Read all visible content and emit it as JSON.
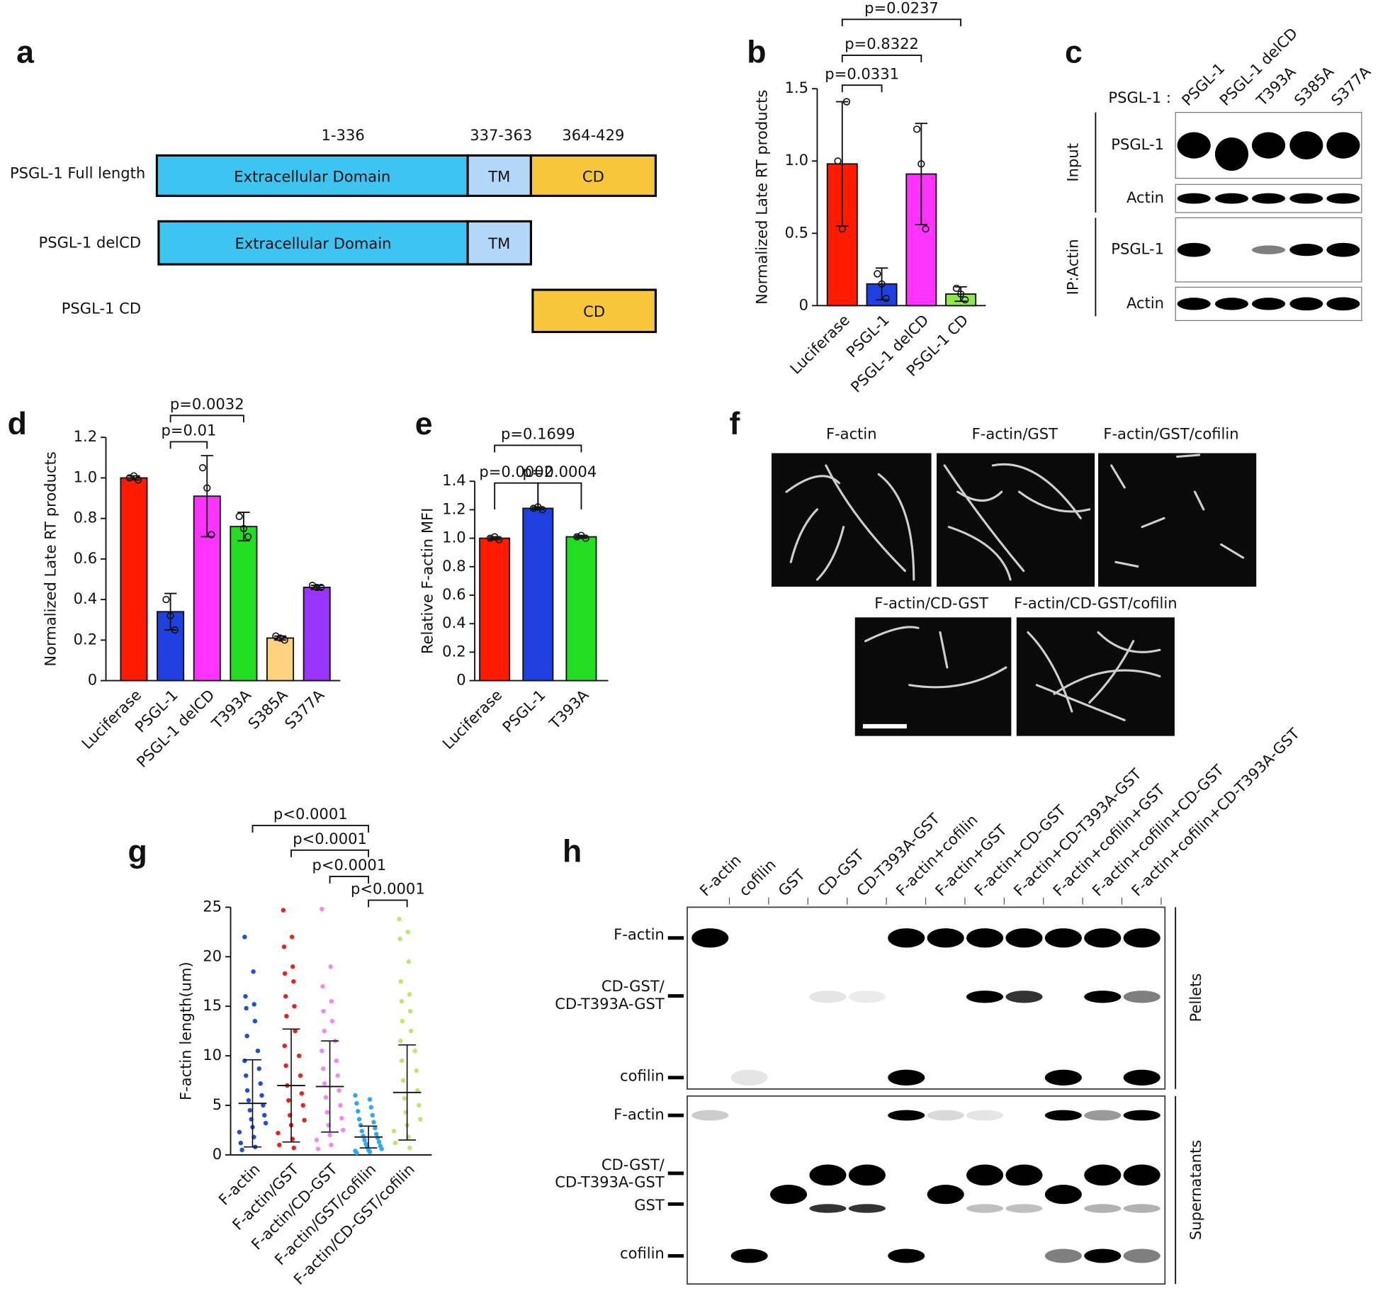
{
  "panel_labels": [
    "a",
    "b",
    "c",
    "d",
    "e",
    "f",
    "g",
    "h"
  ],
  "diagram": {
    "ranges": [
      "1-336",
      "337-363",
      "364-429"
    ],
    "rows": [
      {
        "label": "PSGL-1 Full length",
        "domains": [
          "Extracellular Domain",
          "TM",
          "CD"
        ]
      },
      {
        "label": "PSGL-1 delCD",
        "domains": [
          "Extracellular Domain",
          "TM"
        ]
      },
      {
        "label": "PSGL-1 CD",
        "domains": [
          "CD"
        ]
      }
    ]
  },
  "chart_data": [
    {
      "type": "bar",
      "ylabel": "Normalized Late RT products",
      "categories": [
        "Luciferase",
        "PSGL-1",
        "PSGL-1 delCD",
        "PSGL-1 CD"
      ],
      "values": [
        0.98,
        0.15,
        0.91,
        0.08
      ],
      "errors": [
        0.43,
        0.11,
        0.35,
        0.05
      ],
      "points": [
        [
          1.0,
          0.53,
          1.41
        ],
        [
          0.22,
          0.15,
          0.05
        ],
        [
          1.22,
          0.98,
          0.53
        ],
        [
          0.12,
          0.08,
          0.04
        ]
      ],
      "colors": [
        "#ff1a00",
        "#1f3fe0",
        "#ff33ff",
        "#8ee84a"
      ],
      "ylim": [
        0,
        1.5
      ],
      "yticks": [
        0,
        0.5,
        {
          "value": 1,
          "label": "1.0"
        },
        1.5
      ],
      "comparisons": [
        {
          "pair": [
            0,
            1
          ],
          "label": "p=0.0331"
        },
        {
          "pair": [
            0,
            2
          ],
          "label": "p=0.8322"
        },
        {
          "pair": [
            0,
            3
          ],
          "label": "p=0.0237"
        }
      ]
    },
    {
      "type": "bar",
      "ylabel": "Normalized Late RT products",
      "categories": [
        "Luciferase",
        "PSGL-1",
        "PSGL-1 delCD",
        "T393A",
        "S385A",
        "S377A"
      ],
      "values": [
        1.0,
        0.34,
        0.91,
        0.76,
        0.21,
        0.46
      ],
      "errors": [
        0.01,
        0.09,
        0.2,
        0.07,
        0.01,
        0.01
      ],
      "points": [
        [
          1.0,
          1.01,
          0.99
        ],
        [
          0.4,
          0.32,
          0.25
        ],
        [
          1.05,
          0.95,
          0.72
        ],
        [
          0.81,
          0.75,
          0.71
        ],
        [
          0.22,
          0.21,
          0.2
        ],
        [
          0.47,
          0.46,
          0.46
        ]
      ],
      "colors": [
        "#ff1a00",
        "#1f3fe0",
        "#ff33ff",
        "#22dd22",
        "#ffd27f",
        "#9933ff"
      ],
      "ylim": [
        0,
        1.2
      ],
      "yticks": [
        0,
        0.2,
        0.4,
        0.6,
        0.8,
        {
          "value": 1,
          "label": "1.0"
        },
        1.2
      ],
      "comparisons": [
        {
          "pair": [
            1,
            2
          ],
          "label": "p=0.01"
        },
        {
          "pair": [
            1,
            3
          ],
          "label": "p=0.0032"
        }
      ]
    },
    {
      "type": "bar",
      "ylabel": "Relative F-actin MFI",
      "categories": [
        "Luciferase",
        "PSGL-1",
        "T393A"
      ],
      "values": [
        1.0,
        1.21,
        1.01
      ],
      "errors": [
        0.01,
        0.01,
        0.01
      ],
      "points": [
        [
          1.0,
          1.01,
          0.99
        ],
        [
          1.21,
          1.22,
          1.2
        ],
        [
          1.01,
          1.02,
          1.0
        ]
      ],
      "colors": [
        "#ff1a00",
        "#1f3fe0",
        "#22dd22"
      ],
      "ylim": [
        0,
        1.4
      ],
      "yticks": [
        0,
        0.2,
        0.4,
        0.6,
        0.8,
        {
          "value": 1,
          "label": "1.0"
        },
        1.2,
        1.4
      ],
      "comparisons": [
        {
          "pair": [
            0,
            1
          ],
          "label": "p=0.0002"
        },
        {
          "pair": [
            1,
            2
          ],
          "label": "p=0.0004"
        },
        {
          "pair": [
            0,
            2
          ],
          "label": "p=0.1699"
        }
      ]
    },
    {
      "type": "dotplot",
      "ylabel": "F-actin length(um)",
      "categories": [
        "F-actin",
        "F-actin/GST",
        "F-actin/CD-GST",
        "F-actin/GST/cofilin",
        "F-actin/CD-GST/cofilin"
      ],
      "values": [
        5.2,
        7.0,
        6.9,
        1.8,
        6.3
      ],
      "errors": [
        4.4,
        5.7,
        4.6,
        1.1,
        4.8
      ],
      "points": [
        [
          22,
          18.5,
          16,
          15.2,
          14.8,
          13.5,
          12,
          10.5,
          9.5,
          8.7,
          8,
          7.2,
          6.5,
          6,
          5.5,
          5,
          4.5,
          4,
          3.6,
          3.2,
          2.8,
          2.3,
          1.8,
          1.2,
          0.8,
          0.5
        ],
        [
          24.7,
          22,
          21,
          19,
          18.3,
          17.5,
          16,
          15,
          14,
          12.5,
          11,
          10,
          9,
          8,
          7,
          6.2,
          5.5,
          5,
          4,
          3.5,
          3,
          2.2,
          1.6,
          1,
          0.7
        ],
        [
          24.8,
          19,
          17,
          15.5,
          14.5,
          13.5,
          12.5,
          11.5,
          10.5,
          9.5,
          8.7,
          8,
          7.2,
          6.5,
          5.8,
          5,
          4.3,
          3.7,
          3,
          2.5,
          2,
          1.5,
          1,
          0.6
        ],
        [
          6,
          5.6,
          5.2,
          4.8,
          4.4,
          4,
          3.6,
          3.3,
          3,
          2.7,
          2.4,
          2.1,
          1.9,
          1.7,
          1.5,
          1.3,
          1.1,
          0.9,
          0.8,
          0.6,
          0.5,
          0.4,
          0.3,
          0.2
        ],
        [
          23.8,
          22.5,
          21.8,
          19.5,
          17.5,
          16.2,
          15.5,
          14.5,
          13.5,
          12.5,
          11.5,
          10.5,
          9.5,
          8.5,
          7.5,
          6.5,
          5.7,
          5,
          4.3,
          3.6,
          3,
          2.4,
          1.8,
          1.2,
          0.7
        ]
      ],
      "colors": [
        "#1f4fd6",
        "#e8231b",
        "#f08af0",
        "#2ea8f0",
        "#b8ea70"
      ],
      "ylim": [
        0,
        25
      ],
      "yticks": [
        0,
        5,
        10,
        15,
        20,
        25
      ],
      "comparisons": [
        {
          "pair": [
            0,
            3
          ],
          "label": "p<0.0001"
        },
        {
          "pair": [
            1,
            3
          ],
          "label": "p<0.0001"
        },
        {
          "pair": [
            2,
            3
          ],
          "label": "p<0.0001"
        },
        {
          "pair": [
            3,
            4
          ],
          "label": "p<0.0001"
        }
      ]
    }
  ],
  "blot_c": {
    "prefix": "PSGL-1 :",
    "lanes": [
      "PSGL-1",
      "PSGL-1 delCD",
      "T393A",
      "S385A",
      "S377A"
    ],
    "groups": [
      "Input",
      "IP:Actin"
    ],
    "rows": [
      "PSGL-1",
      "Actin",
      "PSGL-1",
      "Actin"
    ]
  },
  "micrographs": {
    "titles": [
      "F-actin",
      "F-actin/GST",
      "F-actin/GST/cofilin",
      "F-actin/CD-GST",
      "F-actin/CD-GST/cofilin"
    ]
  },
  "blot_h": {
    "lanes": [
      "F-actin",
      "cofilin",
      "GST",
      "CD-GST",
      "CD-T393A-GST",
      "F-actin+cofilin",
      "F-actin+GST",
      "F-actin+CD-GST",
      "F-actin+CD-T393A-GST",
      "F-actin+cofilin+GST",
      "F-actin+cofilin+CD-GST",
      "F-actin+cofilin+CD-T393A-GST"
    ],
    "pellet_markers": [
      "F-actin",
      "CD-GST/",
      "CD-T393A-GST",
      "cofilin"
    ],
    "supernatant_markers": [
      "F-actin",
      "CD-GST/",
      "CD-T393A-GST",
      "GST",
      "cofilin"
    ],
    "sections": [
      "Pellets",
      "Supernatants"
    ]
  }
}
